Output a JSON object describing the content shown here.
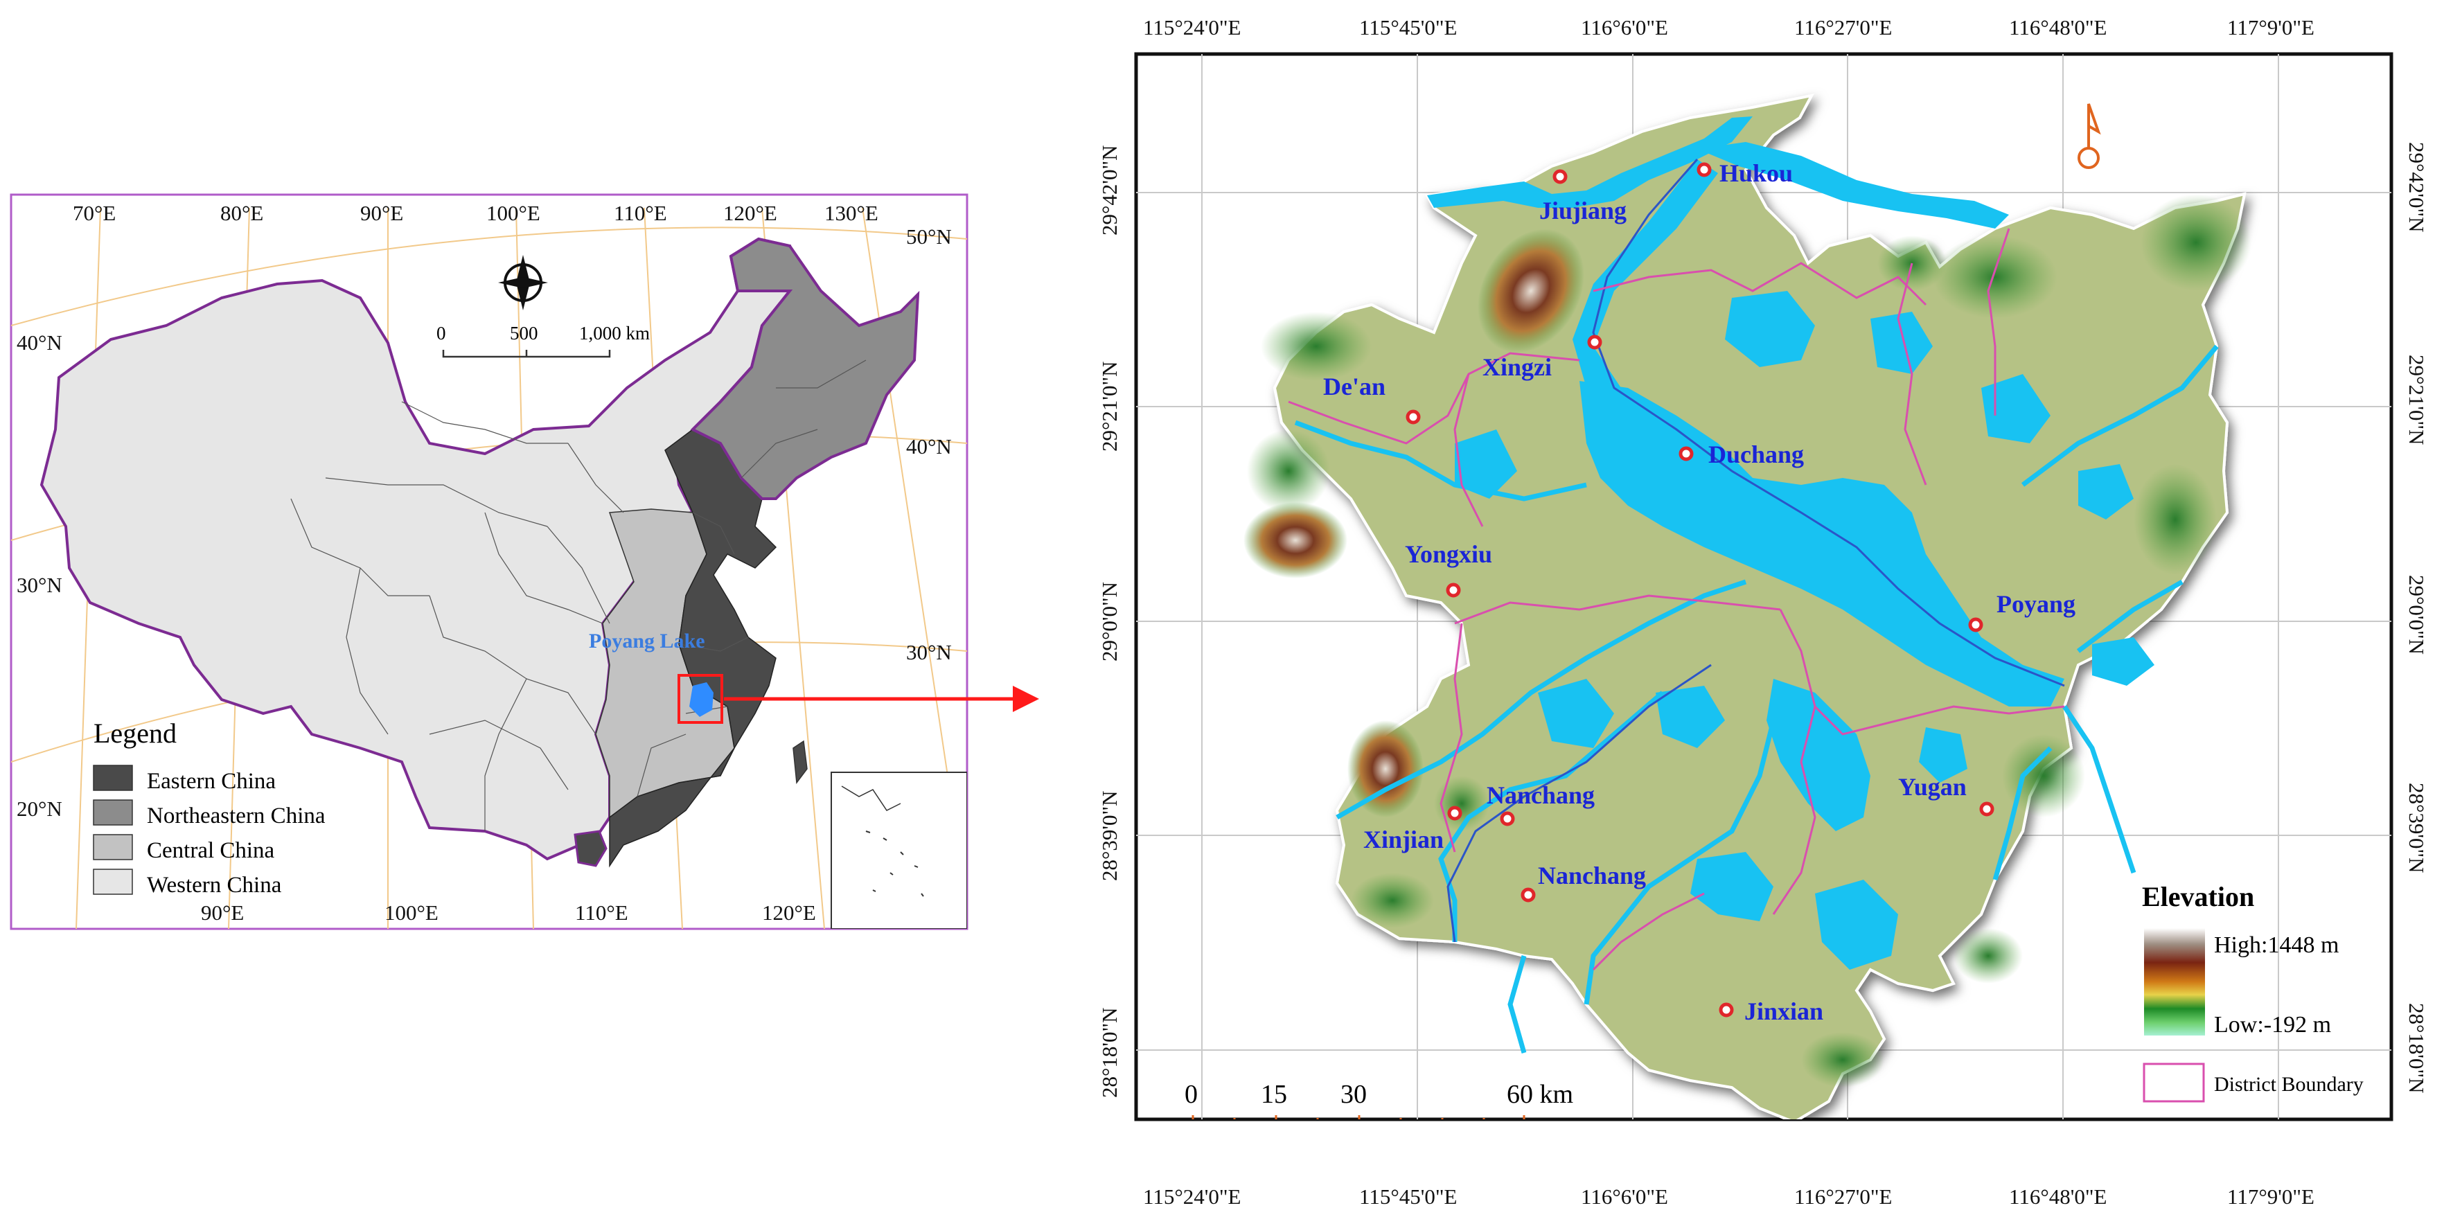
{
  "china_map": {
    "lon_top": [
      "70°E",
      "80°E",
      "90°E",
      "100°E",
      "110°E",
      "120°E",
      "130°E"
    ],
    "lon_bottom": [
      "90°E",
      "100°E",
      "110°E",
      "120°E"
    ],
    "lat_left": [
      "40°N",
      "30°N",
      "20°N"
    ],
    "lat_right": [
      "50°N",
      "40°N",
      "30°N"
    ],
    "scale": {
      "zero": "0",
      "mid": "500",
      "end": "1,000 km"
    },
    "lake_label": "Poyang Lake",
    "legend_title": "Legend",
    "legend_items": [
      {
        "label": "Eastern China",
        "color": "#4a4a4a"
      },
      {
        "label": "Northeastern China",
        "color": "#8c8c8c"
      },
      {
        "label": "Central China",
        "color": "#c2c2c2"
      },
      {
        "label": "Western China",
        "color": "#e6e6e6"
      }
    ],
    "boundary_color": "#8e2ea3",
    "lake_color": "#2f8cff",
    "highlight_color": "#ff1a1a"
  },
  "detail_map": {
    "lon_labels": [
      "115°24'0\"E",
      "115°45'0\"E",
      "116°6'0\"E",
      "116°27'0\"E",
      "116°48'0\"E",
      "117°9'0\"E"
    ],
    "lat_labels": [
      "29°42'0\"N",
      "29°21'0\"N",
      "29°0'0\"N",
      "28°39'0\"N",
      "28°18'0\"N"
    ],
    "cities": [
      "Hukou",
      "Jiujiang",
      "Xingzi",
      "De'an",
      "Duchang",
      "Yongxiu",
      "Poyang",
      "Nanchang",
      "Xinjian",
      "Yugan",
      "Nanchang",
      "Jinxian"
    ],
    "scale": {
      "t0": "0",
      "t1": "15",
      "t2": "30",
      "t3": "60 km"
    },
    "legend": {
      "title": "Elevation",
      "high": "High:1448 m",
      "low": "Low:-192 m",
      "boundary": "District Boundary"
    },
    "water_color": "#18c2f2",
    "land_color": "#b5c285",
    "boundary_color": "#d94fae",
    "city_marker_color": "#e0262b",
    "scale_color": "#e0651f"
  }
}
